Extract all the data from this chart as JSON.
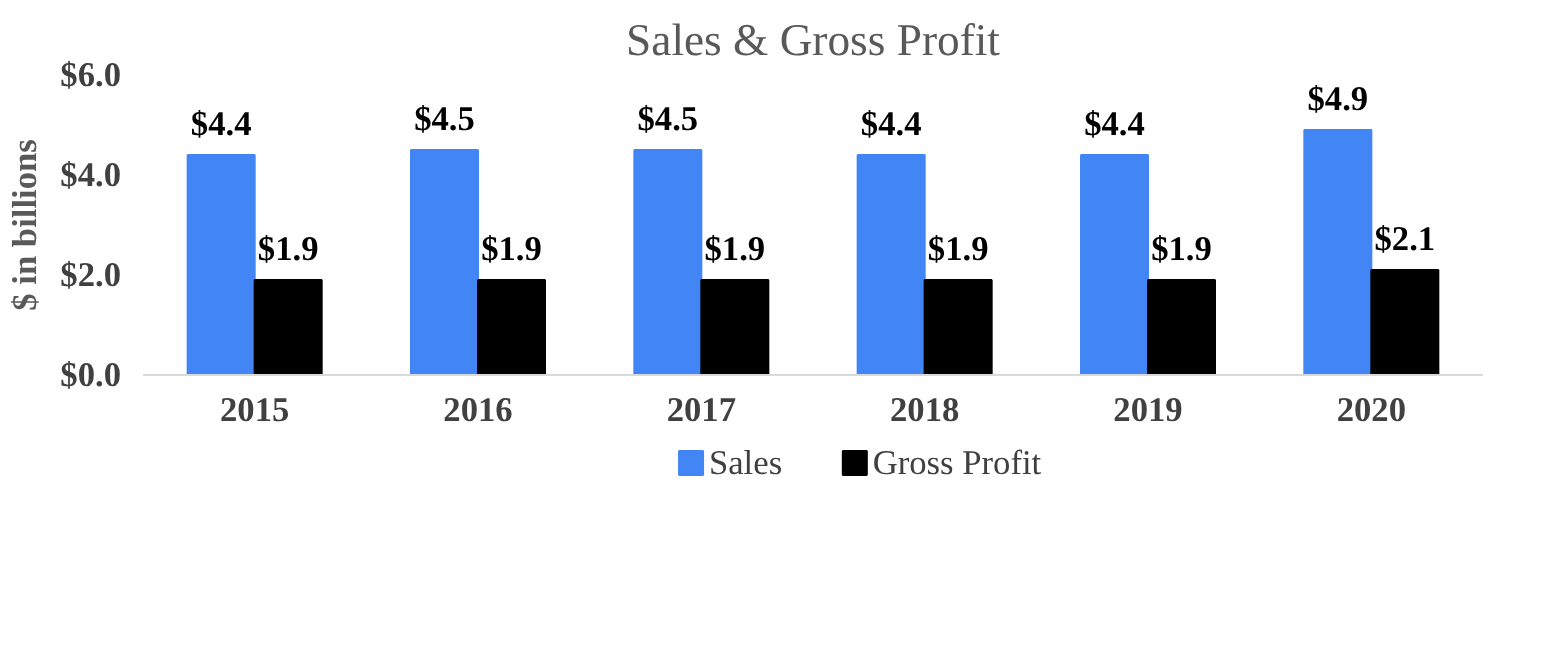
{
  "chart_data": {
    "type": "bar",
    "title": "Sales & Gross Profit",
    "ylabel": "$ in billions",
    "categories": [
      "2015",
      "2016",
      "2017",
      "2018",
      "2019",
      "2020"
    ],
    "series": [
      {
        "name": "Sales",
        "color": "#4285f4",
        "values": [
          4.4,
          4.5,
          4.5,
          4.4,
          4.4,
          4.9
        ],
        "value_labels": [
          "$4.4",
          "$4.5",
          "$4.5",
          "$4.4",
          "$4.4",
          "$4.9"
        ]
      },
      {
        "name": "Gross Profit",
        "color": "#000000",
        "values": [
          1.9,
          1.9,
          1.9,
          1.9,
          1.9,
          2.1
        ],
        "value_labels": [
          "$1.9",
          "$1.9",
          "$1.9",
          "$1.9",
          "$1.9",
          "$2.1"
        ]
      }
    ],
    "ylim": [
      0,
      6
    ],
    "yticks": [
      {
        "value": 0,
        "label": "$0.0"
      },
      {
        "value": 2,
        "label": "$2.0"
      },
      {
        "value": 4,
        "label": "$4.0"
      },
      {
        "value": 6,
        "label": "$6.0"
      }
    ],
    "grid": false,
    "legend": "bottom"
  }
}
